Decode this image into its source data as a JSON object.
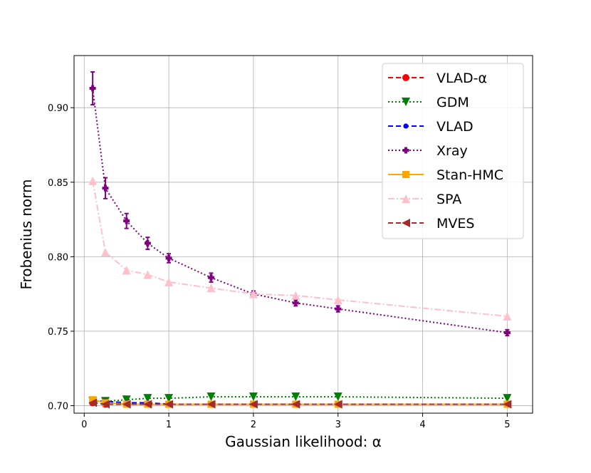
{
  "chart_data": {
    "type": "line",
    "title": "",
    "xlabel": "Gaussian likelihood: α",
    "ylabel": "Frobenius norm",
    "xlim": [
      -0.12,
      5.3
    ],
    "ylim": [
      0.695,
      0.935
    ],
    "xticks": [
      0,
      1,
      2,
      3,
      4,
      5
    ],
    "yticks": [
      0.7,
      0.75,
      0.8,
      0.85,
      0.9
    ],
    "xtick_labels": [
      "0",
      "1",
      "2",
      "3",
      "4",
      "5"
    ],
    "ytick_labels": [
      "0.70",
      "0.75",
      "0.80",
      "0.85",
      "0.90"
    ],
    "grid": true,
    "legend_position": "top-right",
    "series": [
      {
        "name": "VLAD-α",
        "color": "#ff0000",
        "marker": "circle",
        "linestyle": "dashed",
        "x": [
          0.1,
          0.25,
          0.5,
          0.75,
          1.0,
          1.5,
          2.0,
          2.5,
          3.0,
          5.0
        ],
        "y": [
          0.702,
          0.701,
          0.701,
          0.701,
          0.701,
          0.701,
          0.701,
          0.701,
          0.701,
          0.701
        ]
      },
      {
        "name": "GDM",
        "color": "#008000",
        "marker": "triangle-down",
        "linestyle": "dotted",
        "x": [
          0.1,
          0.25,
          0.5,
          0.75,
          1.0,
          1.5,
          2.0,
          2.5,
          3.0,
          5.0
        ],
        "y": [
          0.703,
          0.703,
          0.704,
          0.705,
          0.705,
          0.706,
          0.706,
          0.706,
          0.706,
          0.705
        ]
      },
      {
        "name": "VLAD",
        "color": "#0000ff",
        "marker": "circle-small",
        "linestyle": "dashed",
        "x": [
          0.1,
          0.25,
          0.5,
          0.75,
          1.0,
          1.5,
          2.0,
          2.5,
          3.0,
          5.0
        ],
        "y": [
          0.703,
          0.703,
          0.702,
          0.702,
          0.701,
          0.701,
          0.701,
          0.701,
          0.701,
          0.701
        ]
      },
      {
        "name": "Xray",
        "color": "#800080",
        "marker": "plus-filled",
        "linestyle": "dotted",
        "x": [
          0.1,
          0.25,
          0.5,
          0.75,
          1.0,
          1.5,
          2.0,
          2.5,
          3.0,
          5.0
        ],
        "y": [
          0.913,
          0.846,
          0.824,
          0.809,
          0.799,
          0.786,
          0.775,
          0.769,
          0.765,
          0.749
        ],
        "err": [
          0.011,
          0.007,
          0.005,
          0.004,
          0.003,
          0.003,
          0.002,
          0.002,
          0.002,
          0.002
        ]
      },
      {
        "name": "Stan-HMC",
        "color": "#ffa500",
        "marker": "square",
        "linestyle": "solid",
        "x": [
          0.1,
          0.25,
          0.5,
          0.75,
          1.0,
          1.5,
          2.0,
          2.5,
          3.0,
          5.0
        ],
        "y": [
          0.704,
          0.702,
          0.701,
          0.701,
          0.701,
          0.701,
          0.701,
          0.701,
          0.701,
          0.701
        ]
      },
      {
        "name": "SPA",
        "color": "#ffc0cb",
        "marker": "triangle-up",
        "linestyle": "dashdot",
        "x": [
          0.1,
          0.25,
          0.5,
          0.75,
          1.0,
          1.5,
          2.0,
          2.5,
          3.0,
          5.0
        ],
        "y": [
          0.851,
          0.803,
          0.791,
          0.788,
          0.783,
          0.779,
          0.775,
          0.774,
          0.771,
          0.76
        ]
      },
      {
        "name": "MVES",
        "color": "#a52a2a",
        "marker": "triangle-left",
        "linestyle": "dashed",
        "x": [
          0.1,
          0.25,
          0.5,
          0.75,
          1.0,
          1.5,
          2.0,
          2.5,
          3.0,
          5.0
        ],
        "y": [
          0.702,
          0.701,
          0.701,
          0.701,
          0.701,
          0.701,
          0.701,
          0.701,
          0.701,
          0.701
        ]
      }
    ]
  }
}
